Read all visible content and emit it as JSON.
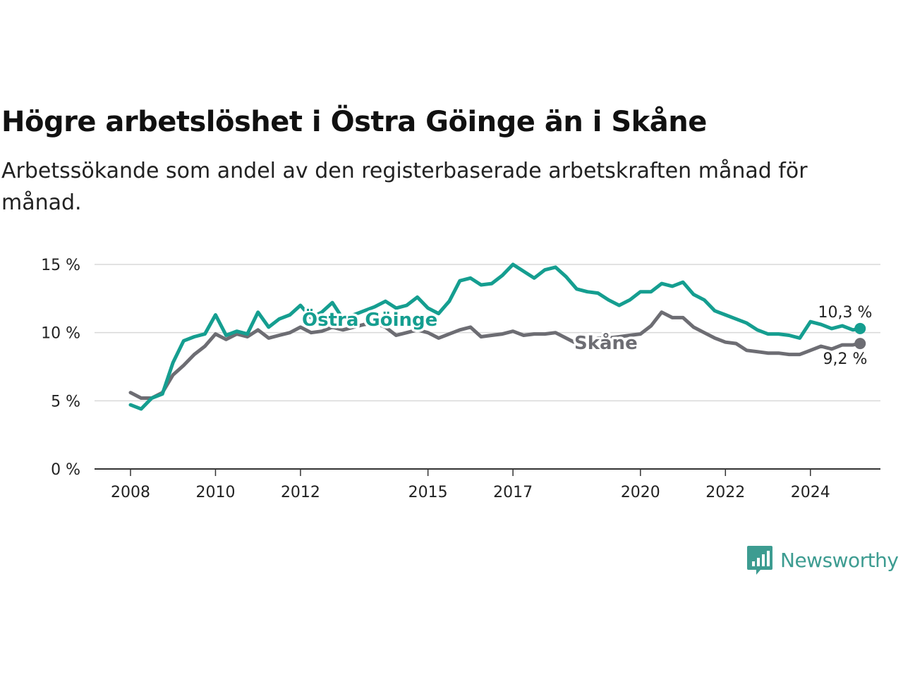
{
  "title": "Högre arbetslöshet i Östra Göinge än i Skåne",
  "subtitle": "Arbetssökande som andel av den registerbaserade arbetskraften månad för månad.",
  "brand": {
    "name": "Newsworthy",
    "icon": "newsworthy-logo-icon",
    "color": "#3d9c91"
  },
  "chart_data": {
    "type": "line",
    "ylim": [
      0,
      15
    ],
    "xlim": [
      2007.6,
      2025.85
    ],
    "grid": true,
    "y_ticks": [
      {
        "value": 0,
        "label": "0 %"
      },
      {
        "value": 5,
        "label": "5 %"
      },
      {
        "value": 10,
        "label": "10 %"
      },
      {
        "value": 15,
        "label": "15 %"
      }
    ],
    "x_ticks": [
      {
        "value": 2008,
        "label": "2008"
      },
      {
        "value": 2010,
        "label": "2010"
      },
      {
        "value": 2012,
        "label": "2012"
      },
      {
        "value": 2015,
        "label": "2015"
      },
      {
        "value": 2017,
        "label": "2017"
      },
      {
        "value": 2020,
        "label": "2020"
      },
      {
        "value": 2022,
        "label": "2022"
      },
      {
        "value": 2024,
        "label": "2024"
      }
    ],
    "series": [
      {
        "name": "Östra Göinge",
        "color": "#159e90",
        "end_label": "10,3 %",
        "x": [
          2008.0,
          2008.25,
          2008.5,
          2008.75,
          2009.0,
          2009.25,
          2009.5,
          2009.75,
          2010.0,
          2010.25,
          2010.5,
          2010.75,
          2011.0,
          2011.25,
          2011.5,
          2011.75,
          2012.0,
          2012.25,
          2012.5,
          2012.75,
          2013.0,
          2013.25,
          2013.5,
          2013.75,
          2014.0,
          2014.25,
          2014.5,
          2014.75,
          2015.0,
          2015.25,
          2015.5,
          2015.75,
          2016.0,
          2016.25,
          2016.5,
          2016.75,
          2017.0,
          2017.25,
          2017.5,
          2017.75,
          2018.0,
          2018.25,
          2018.5,
          2018.75,
          2019.0,
          2019.25,
          2019.5,
          2019.75,
          2020.0,
          2020.25,
          2020.5,
          2020.75,
          2021.0,
          2021.25,
          2021.5,
          2021.75,
          2022.0,
          2022.25,
          2022.5,
          2022.75,
          2023.0,
          2023.25,
          2023.5,
          2023.75,
          2024.0,
          2024.25,
          2024.5,
          2024.75,
          2025.0,
          2025.17
        ],
        "values": [
          4.7,
          4.4,
          5.2,
          5.5,
          7.8,
          9.4,
          9.7,
          9.9,
          11.3,
          9.8,
          10.1,
          9.9,
          11.5,
          10.4,
          11.0,
          11.3,
          12.0,
          11.1,
          11.5,
          12.2,
          11.0,
          11.3,
          11.6,
          11.9,
          12.3,
          11.8,
          12.0,
          12.6,
          11.8,
          11.4,
          12.3,
          13.8,
          14.0,
          13.5,
          13.6,
          14.2,
          15.0,
          14.5,
          14.0,
          14.6,
          14.8,
          14.1,
          13.2,
          13.0,
          12.9,
          12.4,
          12.0,
          12.4,
          13.0,
          13.0,
          13.6,
          13.4,
          13.7,
          12.8,
          12.4,
          11.6,
          11.3,
          11.0,
          10.7,
          10.2,
          9.9,
          9.9,
          9.8,
          9.6,
          10.8,
          10.6,
          10.3,
          10.5,
          10.2,
          10.3
        ]
      },
      {
        "name": "Skåne",
        "color": "#6d6d73",
        "end_label": "9,2 %",
        "x": [
          2008.0,
          2008.25,
          2008.5,
          2008.75,
          2009.0,
          2009.25,
          2009.5,
          2009.75,
          2010.0,
          2010.25,
          2010.5,
          2010.75,
          2011.0,
          2011.25,
          2011.5,
          2011.75,
          2012.0,
          2012.25,
          2012.5,
          2012.75,
          2013.0,
          2013.25,
          2013.5,
          2013.75,
          2014.0,
          2014.25,
          2014.5,
          2014.75,
          2015.0,
          2015.25,
          2015.5,
          2015.75,
          2016.0,
          2016.25,
          2016.5,
          2016.75,
          2017.0,
          2017.25,
          2017.5,
          2017.75,
          2018.0,
          2018.25,
          2018.5,
          2018.75,
          2019.0,
          2019.25,
          2019.5,
          2019.75,
          2020.0,
          2020.25,
          2020.5,
          2020.75,
          2021.0,
          2021.25,
          2021.5,
          2021.75,
          2022.0,
          2022.25,
          2022.5,
          2022.75,
          2023.0,
          2023.25,
          2023.5,
          2023.75,
          2024.0,
          2024.25,
          2024.5,
          2024.75,
          2025.0,
          2025.17
        ],
        "values": [
          5.6,
          5.2,
          5.2,
          5.6,
          6.9,
          7.6,
          8.4,
          9.0,
          9.9,
          9.5,
          9.9,
          9.7,
          10.2,
          9.6,
          9.8,
          10.0,
          10.4,
          10.0,
          10.1,
          10.4,
          10.2,
          10.4,
          10.6,
          10.7,
          10.4,
          9.8,
          10.0,
          10.2,
          10.0,
          9.6,
          9.9,
          10.2,
          10.4,
          9.7,
          9.8,
          9.9,
          10.1,
          9.8,
          9.9,
          9.9,
          10.0,
          9.6,
          9.2,
          9.4,
          9.6,
          9.6,
          9.7,
          9.8,
          9.9,
          10.5,
          11.5,
          11.1,
          11.1,
          10.4,
          10.0,
          9.6,
          9.3,
          9.2,
          8.7,
          8.6,
          8.5,
          8.5,
          8.4,
          8.4,
          8.7,
          9.0,
          8.8,
          9.1,
          9.1,
          9.2
        ]
      }
    ]
  }
}
